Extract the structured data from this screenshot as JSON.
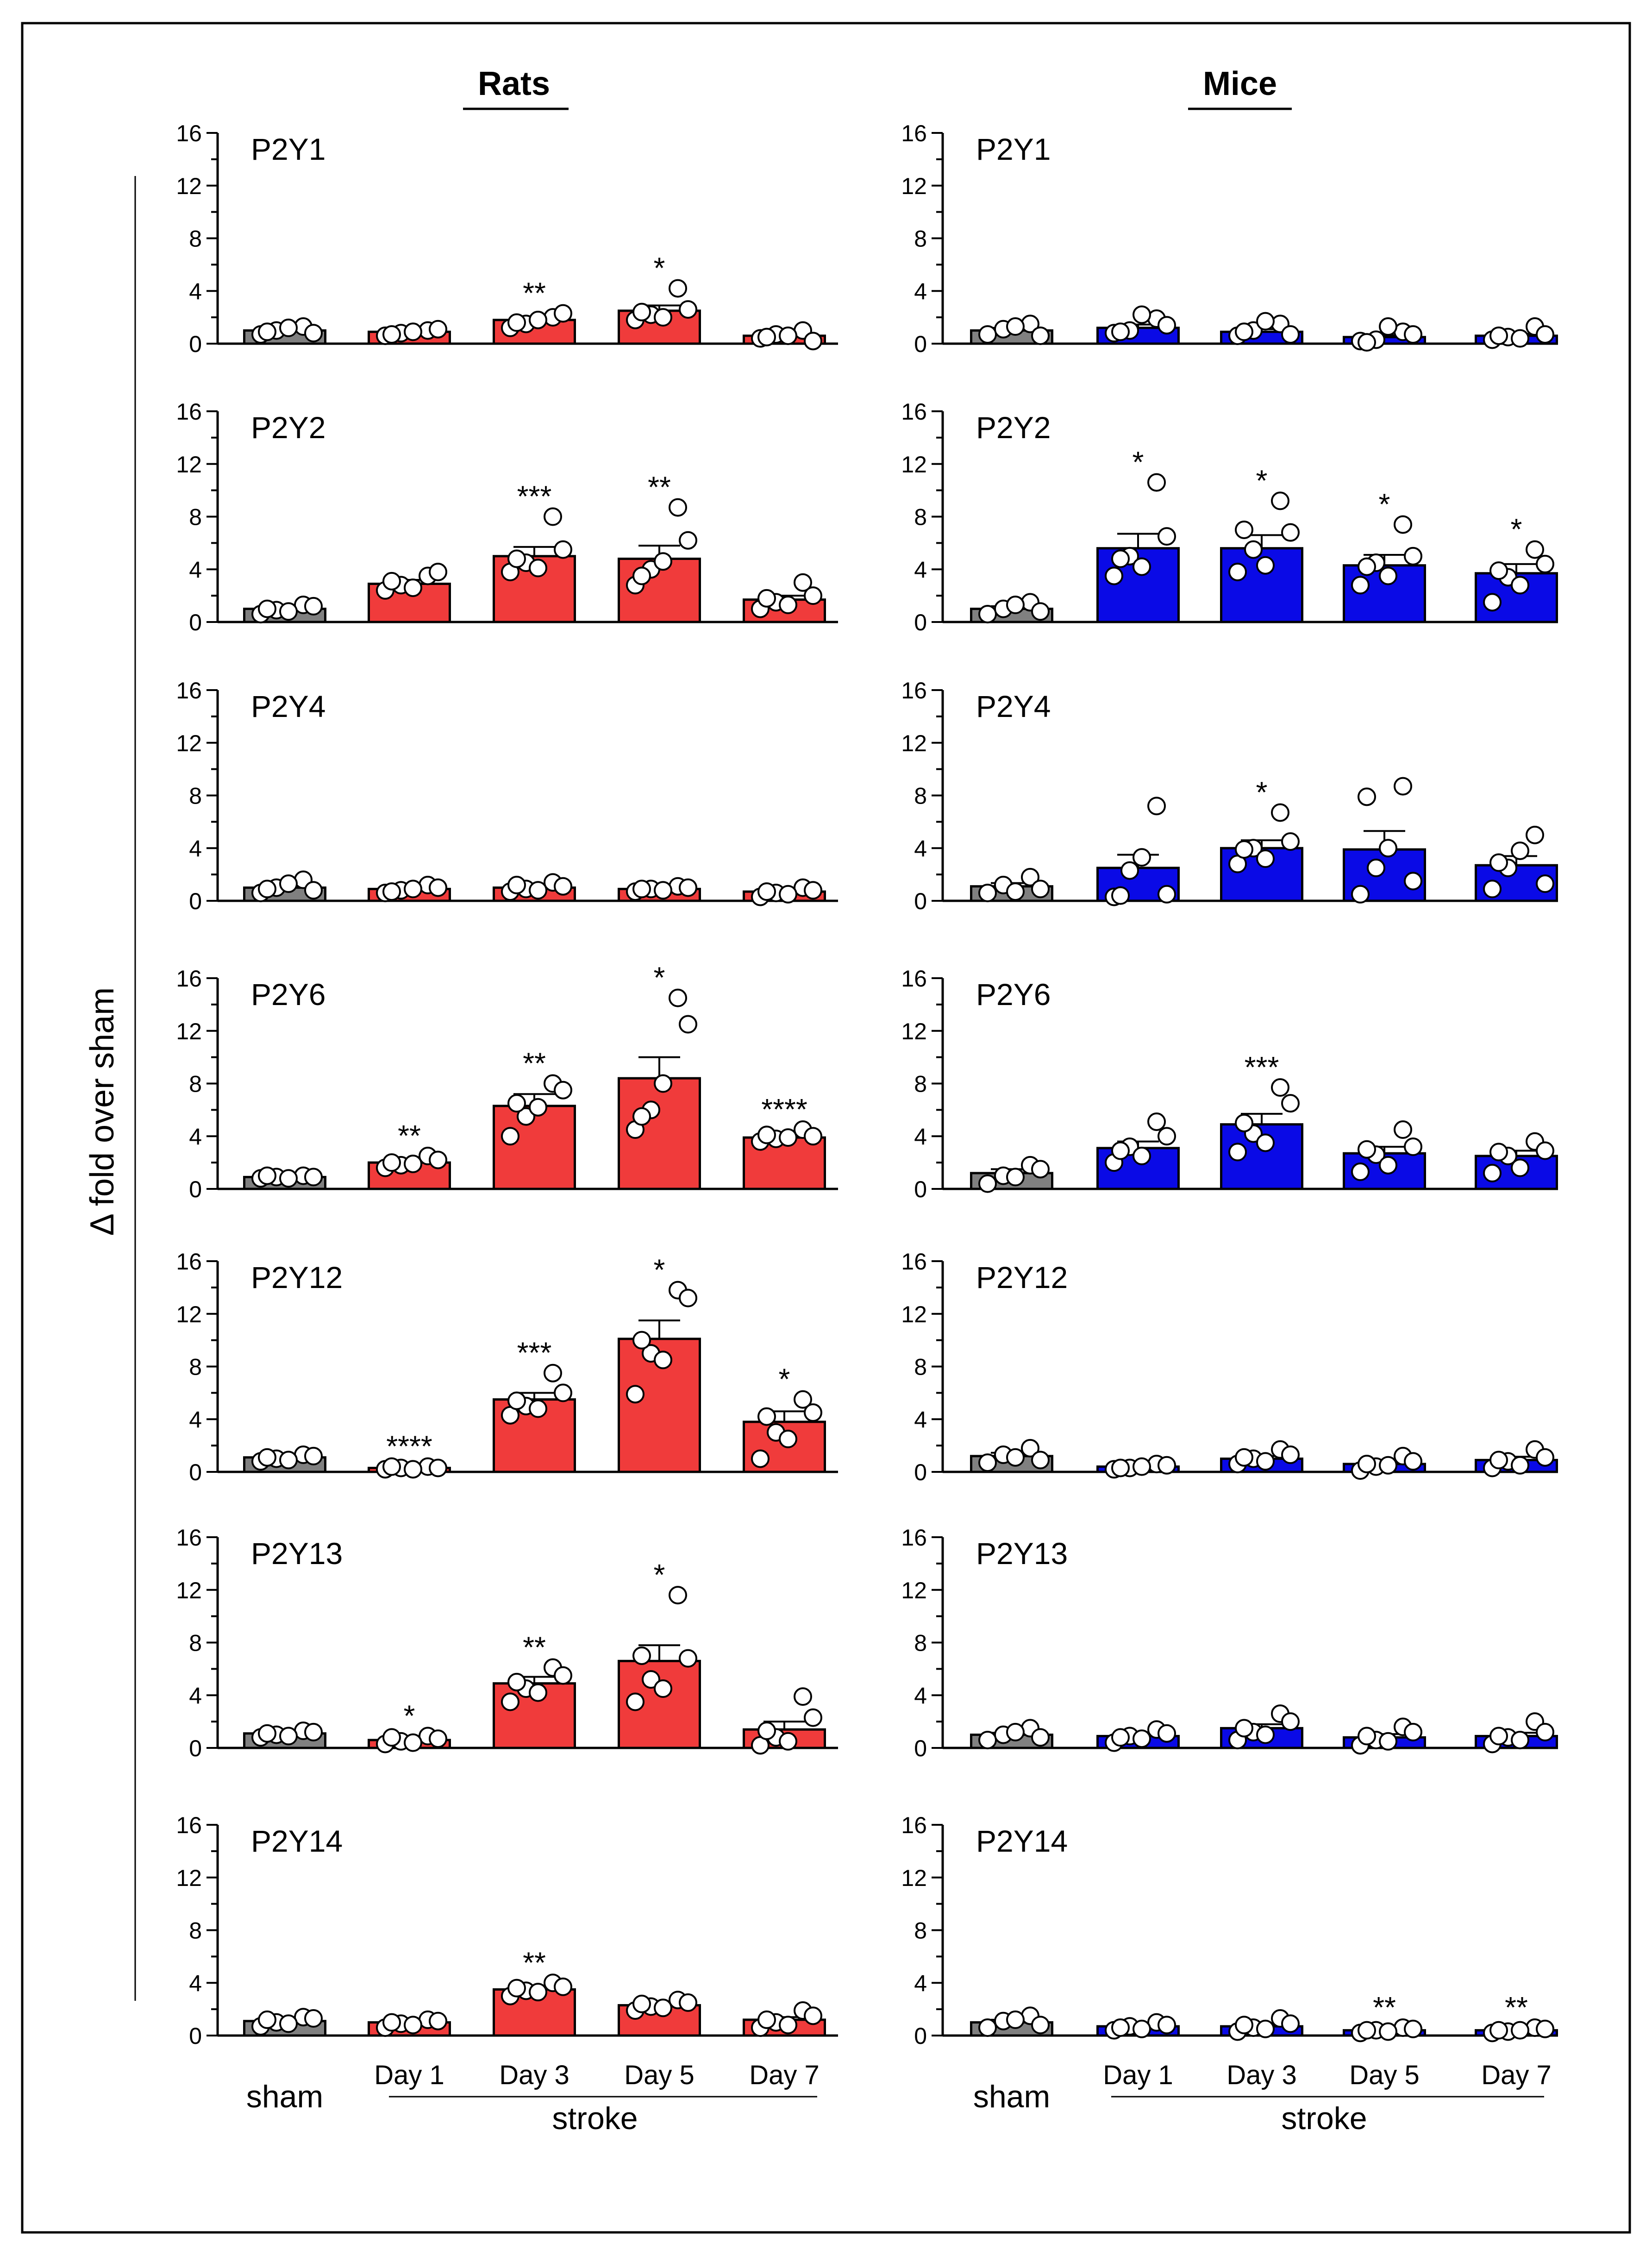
{
  "figure": {
    "columns": [
      {
        "title": "Rats",
        "bar_color": "#f03b3b"
      },
      {
        "title": "Mice",
        "bar_color": "#0a0ae6"
      }
    ],
    "ylabel": "Δ fold over sham",
    "sham_label": "sham",
    "stroke_label": "stroke",
    "day_labels": [
      "Day 1",
      "Day 3",
      "Day 5",
      "Day 7"
    ],
    "sham_color": "#808080"
  },
  "chart_data": [
    {
      "type": "bar",
      "column": "Rats",
      "title": "P2Y1",
      "categories": [
        "sham",
        "Day 1",
        "Day 3",
        "Day 5",
        "Day 7"
      ],
      "values": [
        1.0,
        0.9,
        1.8,
        2.5,
        0.6
      ],
      "sem": [
        0.15,
        0.1,
        0.25,
        0.4,
        0.15
      ],
      "points": [
        [
          0.7,
          1.3,
          1.0,
          0.8,
          1.2,
          0.9
        ],
        [
          0.6,
          1.0,
          0.8,
          1.1,
          0.9,
          0.7
        ],
        [
          1.2,
          2.0,
          1.5,
          2.3,
          1.8,
          1.6
        ],
        [
          1.8,
          4.2,
          2.2,
          2.6,
          2.0,
          2.4
        ],
        [
          0.4,
          1.0,
          0.7,
          0.2,
          0.6,
          0.5
        ]
      ],
      "significance": [
        "",
        "",
        "**",
        "*",
        ""
      ],
      "yticks": [
        0,
        4,
        8,
        12,
        16
      ],
      "ylim": [
        0,
        16
      ]
    },
    {
      "type": "bar",
      "column": "Mice",
      "title": "P2Y1",
      "categories": [
        "sham",
        "Day 1",
        "Day 3",
        "Day 5",
        "Day 7"
      ],
      "values": [
        1.0,
        1.2,
        0.9,
        0.5,
        0.6
      ],
      "sem": [
        0.2,
        0.25,
        0.2,
        0.15,
        0.15
      ],
      "points": [
        [
          0.7,
          1.5,
          1.1,
          0.6,
          1.3
        ],
        [
          0.8,
          1.9,
          1.0,
          1.4,
          2.2,
          0.9
        ],
        [
          0.6,
          1.5,
          1.0,
          0.7,
          1.7,
          0.9
        ],
        [
          0.2,
          0.9,
          0.3,
          0.7,
          1.3,
          0.1
        ],
        [
          0.3,
          1.3,
          0.5,
          0.7,
          0.4,
          0.6
        ]
      ],
      "significance": [
        "",
        "",
        "",
        "",
        ""
      ],
      "yticks": [
        0,
        4,
        8,
        12,
        16
      ],
      "ylim": [
        0,
        16
      ]
    },
    {
      "type": "bar",
      "column": "Rats",
      "title": "P2Y2",
      "categories": [
        "sham",
        "Day 1",
        "Day 3",
        "Day 5",
        "Day 7"
      ],
      "values": [
        1.0,
        2.9,
        5.0,
        4.8,
        1.7
      ],
      "sem": [
        0.15,
        0.3,
        0.7,
        1.0,
        0.3
      ],
      "points": [
        [
          0.6,
          1.3,
          0.9,
          1.2,
          0.8,
          1.0
        ],
        [
          2.4,
          3.5,
          2.8,
          3.8,
          2.6,
          3.1
        ],
        [
          3.8,
          8.0,
          4.5,
          5.5,
          4.1,
          4.8
        ],
        [
          2.8,
          8.7,
          4.0,
          6.2,
          4.6,
          3.5
        ],
        [
          1.0,
          3.0,
          1.5,
          2.0,
          1.3,
          1.8
        ]
      ],
      "significance": [
        "",
        "",
        "***",
        "**",
        ""
      ],
      "yticks": [
        0,
        4,
        8,
        12,
        16
      ],
      "ylim": [
        0,
        16
      ]
    },
    {
      "type": "bar",
      "column": "Mice",
      "title": "P2Y2",
      "categories": [
        "sham",
        "Day 1",
        "Day 3",
        "Day 5",
        "Day 7"
      ],
      "values": [
        1.0,
        5.6,
        5.6,
        4.3,
        3.7
      ],
      "sem": [
        0.2,
        1.1,
        1.0,
        0.8,
        0.7
      ],
      "points": [
        [
          0.6,
          1.5,
          1.0,
          0.8,
          1.3
        ],
        [
          3.5,
          10.6,
          5.0,
          6.5,
          4.2,
          4.8
        ],
        [
          3.8,
          9.2,
          5.5,
          6.8,
          4.3,
          7.0
        ],
        [
          2.8,
          7.4,
          4.5,
          5.0,
          3.5,
          4.2
        ],
        [
          1.5,
          5.5,
          3.4,
          4.4,
          2.8,
          3.9
        ]
      ],
      "significance": [
        "",
        "*",
        "*",
        "*",
        "*"
      ],
      "yticks": [
        0,
        4,
        8,
        12,
        16
      ],
      "ylim": [
        0,
        16
      ]
    },
    {
      "type": "bar",
      "column": "Rats",
      "title": "P2Y4",
      "categories": [
        "sham",
        "Day 1",
        "Day 3",
        "Day 5",
        "Day 7"
      ],
      "values": [
        1.0,
        0.9,
        1.0,
        0.9,
        0.7
      ],
      "sem": [
        0.15,
        0.1,
        0.12,
        0.1,
        0.1
      ],
      "points": [
        [
          0.6,
          1.6,
          1.0,
          0.8,
          1.3,
          0.9
        ],
        [
          0.6,
          1.2,
          0.8,
          1.0,
          0.9,
          0.7
        ],
        [
          0.7,
          1.4,
          0.9,
          1.1,
          0.8,
          1.2
        ],
        [
          0.7,
          1.1,
          0.9,
          1.0,
          0.8,
          0.9
        ],
        [
          0.3,
          1.0,
          0.6,
          0.8,
          0.5,
          0.7
        ]
      ],
      "significance": [
        "",
        "",
        "",
        "",
        ""
      ],
      "yticks": [
        0,
        4,
        8,
        12,
        16
      ],
      "ylim": [
        0,
        16
      ]
    },
    {
      "type": "bar",
      "column": "Mice",
      "title": "P2Y4",
      "categories": [
        "sham",
        "Day 1",
        "Day 3",
        "Day 5",
        "Day 7"
      ],
      "values": [
        1.1,
        2.5,
        4.0,
        3.9,
        2.7
      ],
      "sem": [
        0.25,
        1.0,
        0.6,
        1.4,
        0.7
      ],
      "points": [
        [
          0.6,
          1.8,
          1.2,
          0.9,
          0.7
        ],
        [
          0.3,
          7.2,
          2.3,
          0.5,
          3.3,
          0.4
        ],
        [
          2.8,
          6.7,
          4.0,
          4.5,
          3.2,
          3.9
        ],
        [
          0.5,
          8.7,
          2.5,
          1.5,
          4.0,
          7.9
        ],
        [
          0.9,
          5.0,
          2.5,
          1.3,
          3.8,
          2.9
        ]
      ],
      "significance": [
        "",
        "",
        "*",
        "",
        ""
      ],
      "yticks": [
        0,
        4,
        8,
        12,
        16
      ],
      "ylim": [
        0,
        16
      ]
    },
    {
      "type": "bar",
      "column": "Rats",
      "title": "P2Y6",
      "categories": [
        "sham",
        "Day 1",
        "Day 3",
        "Day 5",
        "Day 7"
      ],
      "values": [
        0.9,
        2.0,
        6.3,
        8.4,
        3.9
      ],
      "sem": [
        0.05,
        0.25,
        0.9,
        1.6,
        0.2
      ],
      "points": [
        [
          0.8,
          1.0,
          0.9,
          0.9,
          0.8,
          1.0
        ],
        [
          1.6,
          2.5,
          1.8,
          2.2,
          1.9,
          2.0
        ],
        [
          4.0,
          8.0,
          5.5,
          7.5,
          6.2,
          6.5
        ],
        [
          4.5,
          14.5,
          6.0,
          12.5,
          8.0,
          5.5
        ],
        [
          3.6,
          4.5,
          3.8,
          4.0,
          3.9,
          4.1
        ]
      ],
      "significance": [
        "",
        "**",
        "**",
        "*",
        "****"
      ],
      "yticks": [
        0,
        4,
        8,
        12,
        16
      ],
      "ylim": [
        0,
        16
      ]
    },
    {
      "type": "bar",
      "column": "Mice",
      "title": "P2Y6",
      "categories": [
        "sham",
        "Day 1",
        "Day 3",
        "Day 5",
        "Day 7"
      ],
      "values": [
        1.2,
        3.1,
        4.9,
        2.7,
        2.5
      ],
      "sem": [
        0.3,
        0.5,
        0.8,
        0.5,
        0.4
      ],
      "points": [
        [
          0.4,
          1.8,
          1.0,
          1.5,
          0.9
        ],
        [
          2.0,
          5.1,
          3.2,
          4.0,
          2.5,
          2.9
        ],
        [
          2.8,
          7.7,
          4.2,
          6.5,
          3.5,
          5.0
        ],
        [
          1.3,
          4.5,
          2.6,
          3.2,
          1.8,
          3.0
        ],
        [
          1.2,
          3.6,
          2.5,
          2.9,
          1.6,
          2.8
        ]
      ],
      "significance": [
        "",
        "",
        "***",
        "",
        ""
      ],
      "yticks": [
        0,
        4,
        8,
        12,
        16
      ],
      "ylim": [
        0,
        16
      ]
    },
    {
      "type": "bar",
      "column": "Rats",
      "title": "P2Y12",
      "categories": [
        "sham",
        "Day 1",
        "Day 3",
        "Day 5",
        "Day 7"
      ],
      "values": [
        1.1,
        0.3,
        5.5,
        10.1,
        3.8
      ],
      "sem": [
        0.1,
        0.05,
        0.5,
        1.4,
        0.8
      ],
      "points": [
        [
          0.8,
          1.3,
          1.0,
          1.2,
          0.9,
          1.1
        ],
        [
          0.2,
          0.4,
          0.3,
          0.3,
          0.2,
          0.4
        ],
        [
          4.3,
          7.5,
          5.0,
          6.0,
          4.8,
          5.4
        ],
        [
          5.9,
          13.8,
          9.0,
          13.2,
          8.5,
          10.0
        ],
        [
          1.0,
          5.5,
          3.0,
          4.5,
          2.5,
          4.2
        ]
      ],
      "significance": [
        "",
        "****",
        "***",
        "*",
        "*"
      ],
      "yticks": [
        0,
        4,
        8,
        12,
        16
      ],
      "ylim": [
        0,
        16
      ]
    },
    {
      "type": "bar",
      "column": "Mice",
      "title": "P2Y12",
      "categories": [
        "sham",
        "Day 1",
        "Day 3",
        "Day 5",
        "Day 7"
      ],
      "values": [
        1.2,
        0.4,
        1.0,
        0.6,
        0.9
      ],
      "sem": [
        0.25,
        0.08,
        0.2,
        0.2,
        0.25
      ],
      "points": [
        [
          0.7,
          1.8,
          1.3,
          0.9,
          1.1
        ],
        [
          0.2,
          0.6,
          0.3,
          0.5,
          0.4,
          0.3
        ],
        [
          0.6,
          1.7,
          1.0,
          1.3,
          0.8,
          1.1
        ],
        [
          0.1,
          1.2,
          0.4,
          0.8,
          0.5,
          0.6
        ],
        [
          0.3,
          1.7,
          0.8,
          1.1,
          0.5,
          0.9
        ]
      ],
      "significance": [
        "",
        "",
        "",
        "",
        ""
      ],
      "yticks": [
        0,
        4,
        8,
        12,
        16
      ],
      "ylim": [
        0,
        16
      ]
    },
    {
      "type": "bar",
      "column": "Rats",
      "title": "P2Y13",
      "categories": [
        "sham",
        "Day 1",
        "Day 3",
        "Day 5",
        "Day 7"
      ],
      "values": [
        1.1,
        0.6,
        4.9,
        6.6,
        1.4
      ],
      "sem": [
        0.1,
        0.1,
        0.5,
        1.2,
        0.6
      ],
      "points": [
        [
          0.8,
          1.3,
          1.0,
          1.2,
          0.9,
          1.1
        ],
        [
          0.3,
          0.9,
          0.5,
          0.7,
          0.4,
          0.8
        ],
        [
          3.5,
          6.1,
          4.5,
          5.5,
          4.2,
          5.0
        ],
        [
          3.5,
          11.6,
          5.2,
          6.8,
          4.5,
          7.0
        ],
        [
          0.2,
          3.9,
          0.8,
          2.3,
          0.5,
          1.3
        ]
      ],
      "significance": [
        "",
        "*",
        "**",
        "*",
        ""
      ],
      "yticks": [
        0,
        4,
        8,
        12,
        16
      ],
      "ylim": [
        0,
        16
      ]
    },
    {
      "type": "bar",
      "column": "Mice",
      "title": "P2Y13",
      "categories": [
        "sham",
        "Day 1",
        "Day 3",
        "Day 5",
        "Day 7"
      ],
      "values": [
        1.0,
        0.9,
        1.5,
        0.8,
        0.9
      ],
      "sem": [
        0.15,
        0.2,
        0.3,
        0.25,
        0.25
      ],
      "points": [
        [
          0.6,
          1.5,
          1.0,
          0.8,
          1.2
        ],
        [
          0.4,
          1.4,
          0.9,
          1.1,
          0.7,
          0.8
        ],
        [
          0.6,
          2.6,
          1.2,
          2.0,
          1.0,
          1.5
        ],
        [
          0.2,
          1.6,
          0.6,
          1.2,
          0.5,
          0.9
        ],
        [
          0.3,
          2.0,
          0.8,
          1.2,
          0.6,
          0.9
        ]
      ],
      "significance": [
        "",
        "",
        "",
        "",
        ""
      ],
      "yticks": [
        0,
        4,
        8,
        12,
        16
      ],
      "ylim": [
        0,
        16
      ]
    },
    {
      "type": "bar",
      "column": "Rats",
      "title": "P2Y14",
      "categories": [
        "sham",
        "Day 1",
        "Day 3",
        "Day 5",
        "Day 7"
      ],
      "values": [
        1.1,
        1.0,
        3.5,
        2.3,
        1.2
      ],
      "sem": [
        0.15,
        0.1,
        0.15,
        0.12,
        0.2
      ],
      "points": [
        [
          0.7,
          1.4,
          1.0,
          1.3,
          0.9,
          1.2
        ],
        [
          0.6,
          1.2,
          0.9,
          1.1,
          0.8,
          1.0
        ],
        [
          3.0,
          4.0,
          3.4,
          3.7,
          3.3,
          3.6
        ],
        [
          1.9,
          2.7,
          2.2,
          2.5,
          2.1,
          2.4
        ],
        [
          0.6,
          1.9,
          1.0,
          1.5,
          0.8,
          1.2
        ]
      ],
      "significance": [
        "",
        "",
        "**",
        "",
        ""
      ],
      "yticks": [
        0,
        4,
        8,
        12,
        16
      ],
      "ylim": [
        0,
        16
      ]
    },
    {
      "type": "bar",
      "column": "Mice",
      "title": "P2Y14",
      "categories": [
        "sham",
        "Day 1",
        "Day 3",
        "Day 5",
        "Day 7"
      ],
      "values": [
        1.0,
        0.7,
        0.7,
        0.4,
        0.4
      ],
      "sem": [
        0.2,
        0.12,
        0.15,
        0.08,
        0.08
      ],
      "points": [
        [
          0.6,
          1.5,
          1.1,
          0.8,
          1.2
        ],
        [
          0.4,
          1.0,
          0.7,
          0.8,
          0.5,
          0.6
        ],
        [
          0.3,
          1.3,
          0.6,
          0.9,
          0.5,
          0.8
        ],
        [
          0.2,
          0.6,
          0.4,
          0.5,
          0.3,
          0.4
        ],
        [
          0.2,
          0.6,
          0.3,
          0.5,
          0.4,
          0.4
        ]
      ],
      "significance": [
        "",
        "",
        "",
        "**",
        "**"
      ],
      "yticks": [
        0,
        4,
        8,
        12,
        16
      ],
      "ylim": [
        0,
        16
      ]
    }
  ]
}
